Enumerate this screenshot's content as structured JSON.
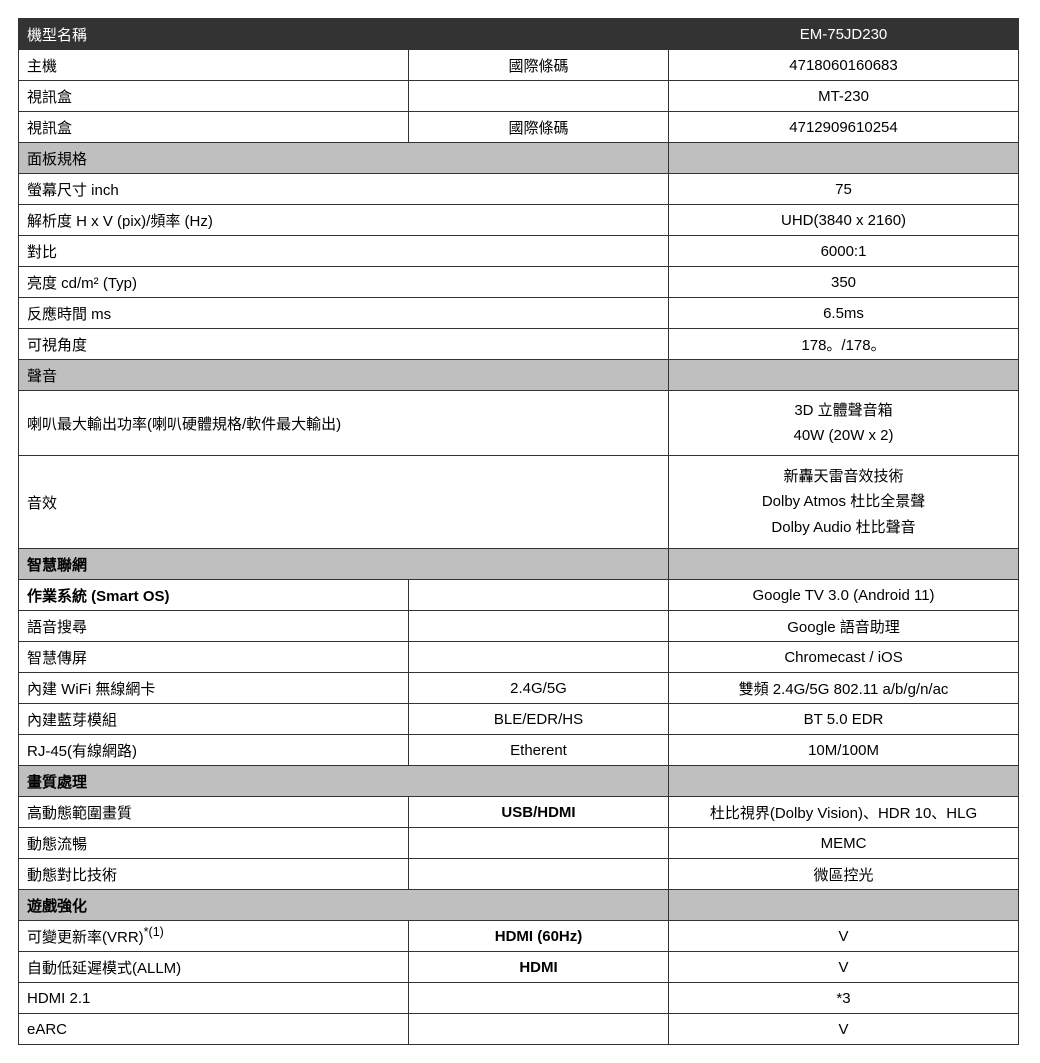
{
  "colors": {
    "header_bg": "#333333",
    "header_fg": "#ffffff",
    "section_bg": "#bfbfbf",
    "border": "#333333"
  },
  "header": {
    "model_label": "機型名稱",
    "model_value": "EM-75JD230"
  },
  "top_rows": [
    {
      "label": "主機",
      "mid": "國際條碼",
      "value": "4718060160683"
    },
    {
      "label": "視訊盒",
      "mid": "",
      "value": "MT-230"
    },
    {
      "label": "視訊盒",
      "mid": "國際條碼",
      "value": "4712909610254"
    }
  ],
  "panel": {
    "section": "面板規格",
    "rows": [
      {
        "label": "螢幕尺寸  inch",
        "value": "75"
      },
      {
        "label": "解析度  H x V (pix)/頻率     (Hz)",
        "value": "UHD(3840 x 2160)"
      },
      {
        "label": "對比",
        "value": "6000:1"
      },
      {
        "label": "亮度      cd/m²  (Typ)",
        "value": "350"
      },
      {
        "label": "反應時間     ms",
        "value": "6.5ms"
      },
      {
        "label": "可視角度",
        "value": "178。/178。"
      }
    ]
  },
  "sound": {
    "section": "聲音",
    "rows": [
      {
        "label": "喇叭最大輸出功率(喇叭硬體規格/軟件最大輸出)",
        "values": [
          "3D 立體聲音箱",
          "40W (20W x 2)"
        ]
      },
      {
        "label": "音效",
        "values": [
          "新轟天雷音效技術",
          "Dolby Atmos  杜比全景聲",
          "Dolby Audio  杜比聲音"
        ]
      }
    ]
  },
  "smart": {
    "section": "智慧聯網",
    "rows": [
      {
        "label": "作業系統  (Smart OS)",
        "mid": "",
        "value": "Google TV 3.0 (Android 11)",
        "bold": true
      },
      {
        "label": "語音搜尋",
        "mid": "",
        "value": "Google  語音助理"
      },
      {
        "label": "智慧傳屏",
        "mid": "",
        "value": "Chromecast / iOS"
      },
      {
        "label": "內建 WiFi 無線網卡",
        "mid": "2.4G/5G",
        "value": "雙頻  2.4G/5G 802.11 a/b/g/n/ac"
      },
      {
        "label": "內建藍芽模組",
        "mid": "BLE/EDR/HS",
        "value": "BT 5.0 EDR"
      },
      {
        "label": "RJ-45(有線網路)",
        "mid": "Etherent",
        "value": "10M/100M"
      }
    ]
  },
  "image": {
    "section": "畫質處理",
    "rows": [
      {
        "label": "高動態範圍畫質",
        "mid": "USB/HDMI",
        "mid_bold": true,
        "value": "杜比視界(Dolby Vision)、HDR 10、HLG"
      },
      {
        "label": "動態流暢",
        "mid": "",
        "value": "MEMC"
      },
      {
        "label": "動態對比技術",
        "mid": "",
        "value": "微區控光"
      }
    ]
  },
  "game": {
    "section": "遊戲強化",
    "rows": [
      {
        "label_html": "可變更新率(VRR)<sup>*(1)</sup>",
        "mid": "HDMI (60Hz)",
        "mid_bold": true,
        "value": "V"
      },
      {
        "label": "自動低延遲模式(ALLM)",
        "mid": "HDMI",
        "mid_bold": true,
        "value": "V"
      },
      {
        "label": "HDMI 2.1",
        "mid": "",
        "value": "*3"
      },
      {
        "label": "eARC",
        "mid": "",
        "value": "V"
      }
    ]
  }
}
